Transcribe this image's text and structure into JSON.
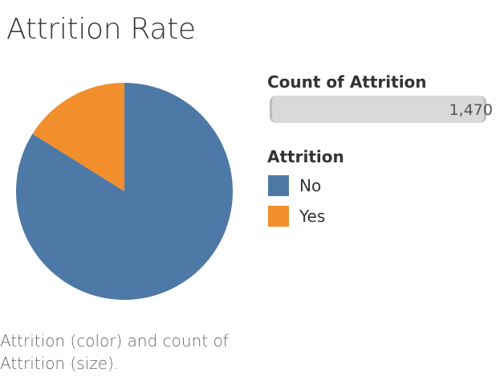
{
  "title": "Attrition Rate",
  "caption": "Attrition (color) and count of Attrition (size).",
  "size_legend": {
    "title": "Count of Attrition",
    "value": "1,470"
  },
  "color_legend": {
    "title": "Attrition",
    "items": [
      {
        "label": "No",
        "color": "#4e79a7"
      },
      {
        "label": "Yes",
        "color": "#f28e2b"
      }
    ]
  },
  "chart_data": {
    "type": "pie",
    "title": "Attrition Rate",
    "categories": [
      "No",
      "Yes"
    ],
    "values": [
      1233,
      237
    ],
    "colors": [
      "#4e79a7",
      "#f28e2b"
    ],
    "total": 1470,
    "legend_position": "right"
  }
}
